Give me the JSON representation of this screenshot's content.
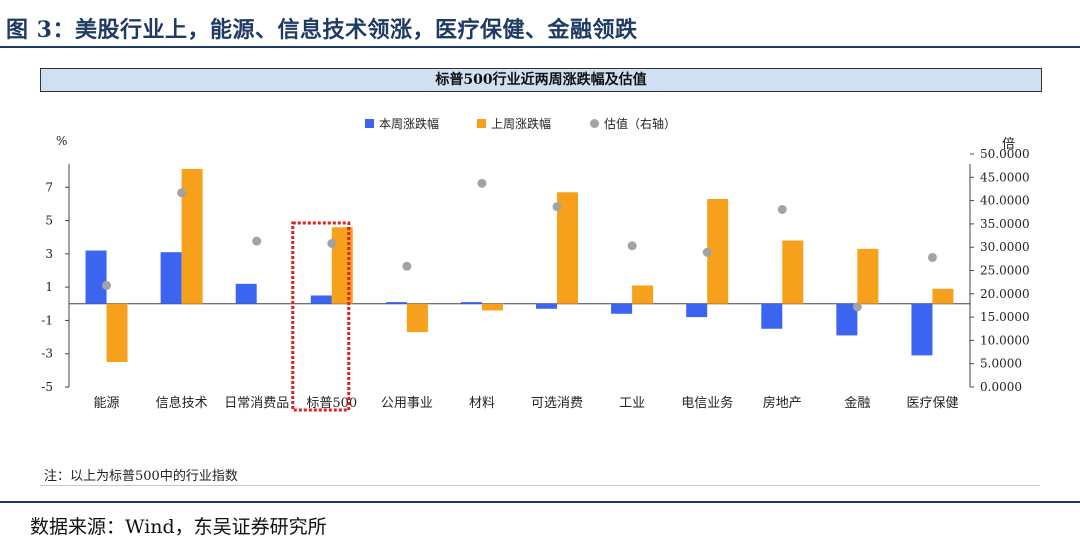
{
  "figure_title": "图 3：美股行业上，能源、信息技术领涨，医疗保健、金融领跌",
  "panel_title": "标普500行业近两周涨跌幅及估值",
  "note": "注：以上为标普500中的行业指数",
  "source": "数据来源：Wind，东吴证券研究所",
  "colors": {
    "this_week": "#3b64f0",
    "last_week": "#f7a01c",
    "valuation": "#a3a3a3",
    "highlight": "#e0201c"
  },
  "chart_data": {
    "type": "bar",
    "title": "标普500行业近两周涨跌幅及估值",
    "y_left_label": "%",
    "y_right_label": "倍",
    "ylim_left": [
      -5,
      9
    ],
    "ylim_right": [
      0,
      50
    ],
    "yticks_left": [
      "7",
      "5",
      "3",
      "1",
      "-1",
      "-3",
      "-5"
    ],
    "yticks_right": [
      "50.0000",
      "45.0000",
      "40.0000",
      "35.0000",
      "30.0000",
      "25.0000",
      "20.0000",
      "15.0000",
      "10.0000",
      "5.0000",
      "0.0000"
    ],
    "categories": [
      "能源",
      "信息技术",
      "日常消费品",
      "标普500",
      "公用事业",
      "材料",
      "可选消费",
      "工业",
      "电信业务",
      "房地产",
      "金融",
      "医疗保健"
    ],
    "highlighted_category": "标普500",
    "legend_position": "top-center",
    "series": [
      {
        "name": "本周涨跌幅",
        "type": "bar",
        "axis": "left",
        "values": [
          3.2,
          3.1,
          1.2,
          0.5,
          0.1,
          0.1,
          -0.3,
          -0.6,
          -0.8,
          -1.5,
          -1.9,
          -3.1
        ]
      },
      {
        "name": "上周涨跌幅",
        "type": "bar",
        "axis": "left",
        "values": [
          -3.5,
          8.1,
          0.0,
          4.6,
          -1.7,
          -0.4,
          6.7,
          1.1,
          6.3,
          3.8,
          3.3,
          0.9
        ]
      },
      {
        "name": "估值（右轴）",
        "type": "scatter",
        "axis": "right",
        "values": [
          21.8,
          41.7,
          31.3,
          30.8,
          25.9,
          43.7,
          38.7,
          30.3,
          28.9,
          38.1,
          17.2,
          27.8
        ]
      }
    ]
  }
}
